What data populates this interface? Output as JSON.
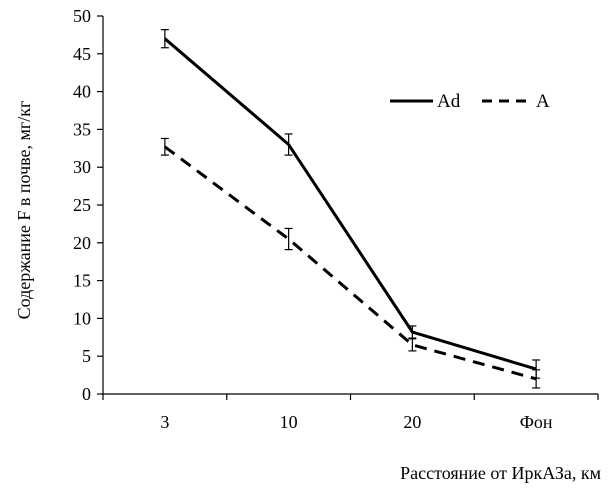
{
  "chart_data": {
    "type": "line",
    "title": "",
    "xlabel": "Расстояние от ИркАЗа, км",
    "ylabel": "Содержание F в почве, мг/кг",
    "categories": [
      "3",
      "10",
      "20",
      "Фон"
    ],
    "ylim": [
      0,
      50
    ],
    "yticks": [
      "0",
      "5",
      "10",
      "15",
      "20",
      "25",
      "30",
      "35",
      "40",
      "45",
      "50"
    ],
    "grid": false,
    "legend_position": "top-right",
    "series": [
      {
        "name": "Ad",
        "line_style": "solid",
        "color": "#000000",
        "values": [
          47.0,
          33.0,
          8.2,
          3.3
        ],
        "errors": [
          1.2,
          1.4,
          0.8,
          1.2
        ]
      },
      {
        "name": "A",
        "line_style": "dashed",
        "color": "#000000",
        "values": [
          32.7,
          20.5,
          6.5,
          2.0
        ],
        "errors": [
          1.1,
          1.4,
          0.8,
          1.2
        ]
      }
    ]
  }
}
